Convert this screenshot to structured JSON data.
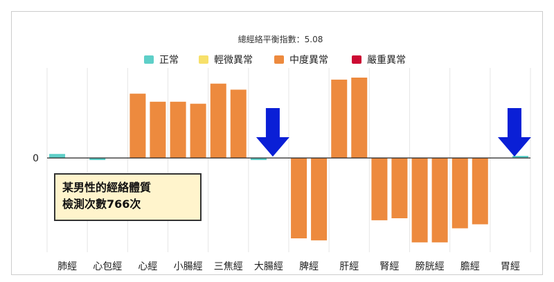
{
  "chart_data": {
    "type": "bar",
    "title": "總經絡平衡指數：5.08",
    "legend": [
      {
        "label": "正常",
        "color": "#5ecfc8"
      },
      {
        "label": "輕微異常",
        "color": "#f7e06a"
      },
      {
        "label": "中度異常",
        "color": "#ed8a3e"
      },
      {
        "label": "嚴重異常",
        "color": "#cc0a33"
      }
    ],
    "zero_label": "0",
    "categories": [
      "肺經",
      "心包經",
      "心經",
      "小腸經",
      "三焦經",
      "大腸經",
      "脾經",
      "肝經",
      "腎經",
      "膀胱經",
      "膽經",
      "胃經"
    ],
    "bars": [
      {
        "category": "肺經",
        "values": [
          {
            "v": 2,
            "status": "正常"
          },
          {
            "v": 0,
            "status": "正常"
          }
        ]
      },
      {
        "category": "心包經",
        "values": [
          {
            "v": -1,
            "status": "正常"
          },
          {
            "v": 0,
            "status": "正常"
          }
        ]
      },
      {
        "category": "心經",
        "values": [
          {
            "v": 32,
            "status": "中度異常"
          },
          {
            "v": 28,
            "status": "中度異常"
          }
        ]
      },
      {
        "category": "小腸經",
        "values": [
          {
            "v": 28,
            "status": "中度異常"
          },
          {
            "v": 27,
            "status": "中度異常"
          }
        ]
      },
      {
        "category": "三焦經",
        "values": [
          {
            "v": 37,
            "status": "中度異常"
          },
          {
            "v": 34,
            "status": "中度異常"
          }
        ]
      },
      {
        "category": "大腸經",
        "values": [
          {
            "v": -1,
            "status": "正常"
          },
          {
            "v": 0,
            "status": "正常"
          }
        ]
      },
      {
        "category": "脾經",
        "values": [
          {
            "v": -40,
            "status": "中度異常"
          },
          {
            "v": -41,
            "status": "中度異常"
          }
        ]
      },
      {
        "category": "肝經",
        "values": [
          {
            "v": 39,
            "status": "中度異常"
          },
          {
            "v": 40,
            "status": "中度異常"
          }
        ]
      },
      {
        "category": "腎經",
        "values": [
          {
            "v": -31,
            "status": "中度異常"
          },
          {
            "v": -30,
            "status": "中度異常"
          }
        ]
      },
      {
        "category": "膀胱經",
        "values": [
          {
            "v": -42,
            "status": "中度異常"
          },
          {
            "v": -42,
            "status": "中度異常"
          }
        ]
      },
      {
        "category": "膽經",
        "values": [
          {
            "v": -35,
            "status": "中度異常"
          },
          {
            "v": -33,
            "status": "中度異常"
          }
        ]
      },
      {
        "category": "胃經",
        "values": [
          {
            "v": 0,
            "status": "正常"
          },
          {
            "v": 1,
            "status": "正常"
          }
        ]
      }
    ],
    "ylim": [
      -45,
      45
    ],
    "grid": "vertical",
    "legend_position": "top",
    "arrow_markers": [
      {
        "at_category": "大腸經",
        "color": "#0a1fd6"
      },
      {
        "at_category": "胃經",
        "color": "#0a1fd6"
      }
    ]
  },
  "note": {
    "line1": "某男性的經絡體質",
    "line2": "檢測次數766次"
  }
}
